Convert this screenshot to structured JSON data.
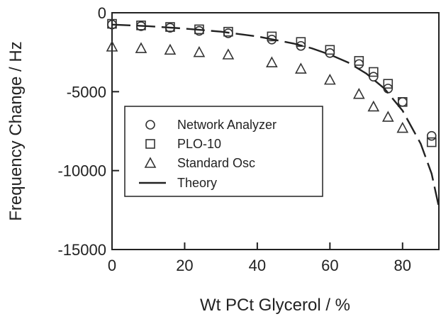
{
  "chart_data": {
    "type": "scatter",
    "title": "",
    "xlabel": "Wt PCt Glycerol / %",
    "ylabel": "Frequency Change / Hz",
    "xlim": [
      0,
      90
    ],
    "ylim": [
      -15000,
      0
    ],
    "x_ticks": [
      0,
      20,
      40,
      60,
      80
    ],
    "y_ticks": [
      0,
      -5000,
      -10000,
      -15000
    ],
    "x_tick_labels": [
      "0",
      "20",
      "40",
      "60",
      "80"
    ],
    "y_tick_labels": [
      "0",
      "-5000",
      "-10000",
      "-15000"
    ],
    "grid": false,
    "legend_position": "lower-left",
    "series": [
      {
        "name": "Network Analyzer",
        "marker": "circle",
        "x": [
          0,
          8,
          16,
          24,
          32,
          44,
          52,
          60,
          68,
          72,
          76,
          80,
          88
        ],
        "y": [
          -750,
          -850,
          -950,
          -1150,
          -1300,
          -1700,
          -2100,
          -2550,
          -3250,
          -4050,
          -4800,
          -5650,
          -7800
        ]
      },
      {
        "name": "PLO-10",
        "marker": "square",
        "x": [
          0,
          8,
          16,
          24,
          32,
          44,
          52,
          60,
          68,
          72,
          76,
          80,
          88
        ],
        "y": [
          -700,
          -800,
          -900,
          -1050,
          -1200,
          -1500,
          -1850,
          -2350,
          -3050,
          -3750,
          -4500,
          -5650,
          -8200
        ]
      },
      {
        "name": "Standard Osc",
        "marker": "triangle",
        "x": [
          0,
          8,
          16,
          24,
          32,
          44,
          52,
          60,
          68,
          72,
          76,
          80
        ],
        "y": [
          -2150,
          -2250,
          -2350,
          -2500,
          -2650,
          -3150,
          -3550,
          -4250,
          -5150,
          -5950,
          -6600,
          -7300
        ]
      },
      {
        "name": "Theory",
        "marker": "dashed-line",
        "x": [
          0,
          10,
          20,
          30,
          40,
          50,
          55,
          60,
          65,
          70,
          75,
          80,
          85,
          88,
          90
        ],
        "y": [
          -750,
          -850,
          -1000,
          -1200,
          -1500,
          -1950,
          -2250,
          -2650,
          -3150,
          -3850,
          -4800,
          -6200,
          -8300,
          -10200,
          -12300
        ]
      }
    ]
  }
}
